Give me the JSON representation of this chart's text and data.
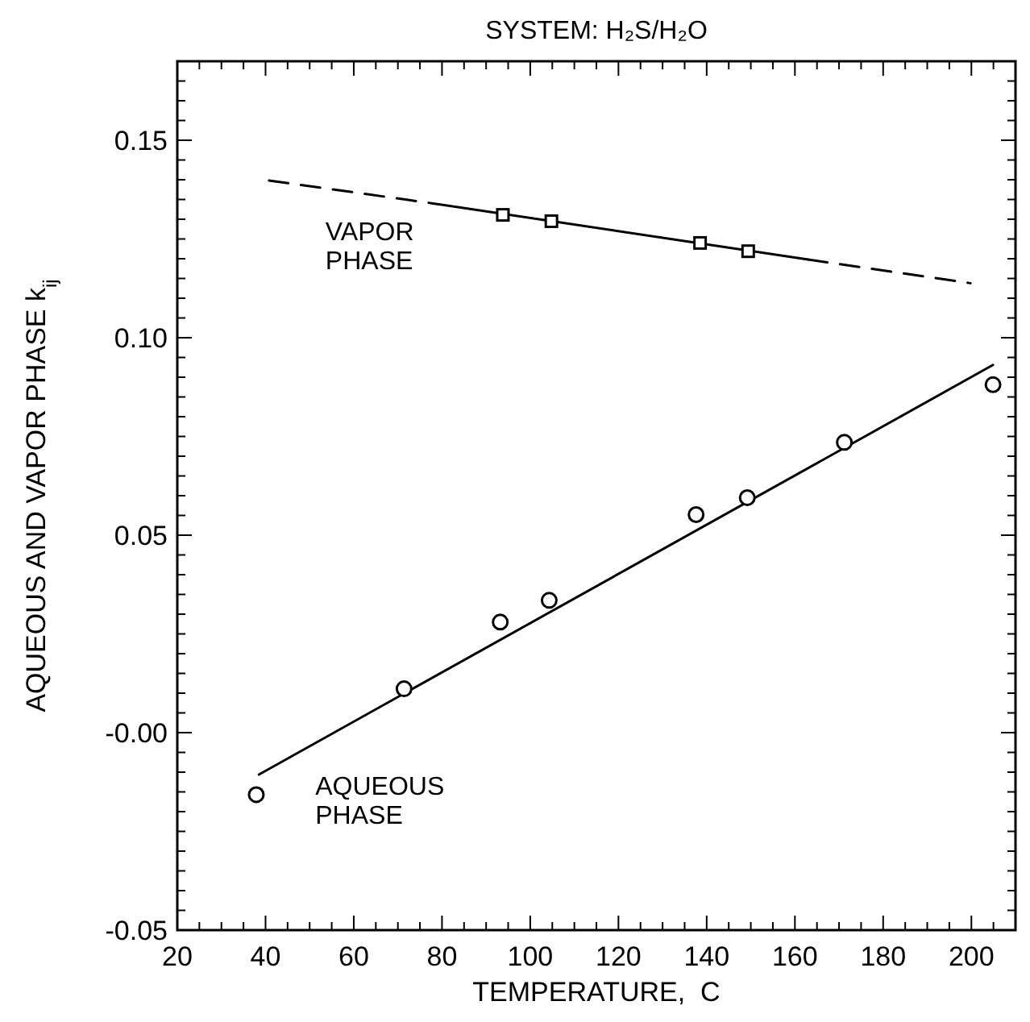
{
  "chart_data": {
    "type": "scatter",
    "title": "SYSTEM: H₂S/H₂O",
    "xlabel": "TEMPERATURE,  C",
    "ylabel": "AQUEOUS AND VAPOR PHASE k$_{ij}$",
    "xlim": [
      20,
      210
    ],
    "ylim": [
      -0.05,
      0.17
    ],
    "xticks": [
      20,
      {
        "value": 25,
        "label": null
      },
      {
        "value": 30,
        "label": null
      },
      {
        "value": 35,
        "label": null
      },
      40,
      {
        "value": 45,
        "label": null
      },
      {
        "value": 50,
        "label": null
      },
      {
        "value": 55,
        "label": null
      },
      60,
      {
        "value": 65,
        "label": null
      },
      {
        "value": 70,
        "label": null
      },
      {
        "value": 75,
        "label": null
      },
      80,
      {
        "value": 85,
        "label": null
      },
      {
        "value": 90,
        "label": null
      },
      {
        "value": 95,
        "label": null
      },
      100,
      {
        "value": 105,
        "label": null
      },
      {
        "value": 110,
        "label": null
      },
      {
        "value": 115,
        "label": null
      },
      120,
      {
        "value": 125,
        "label": null
      },
      {
        "value": 130,
        "label": null
      },
      {
        "value": 135,
        "label": null
      },
      140,
      {
        "value": 145,
        "label": null
      },
      {
        "value": 150,
        "label": null
      },
      {
        "value": 155,
        "label": null
      },
      160,
      {
        "value": 165,
        "label": null
      },
      {
        "value": 170,
        "label": null
      },
      {
        "value": 175,
        "label": null
      },
      180,
      {
        "value": 185,
        "label": null
      },
      {
        "value": 190,
        "label": null
      },
      {
        "value": 195,
        "label": null
      },
      200,
      {
        "value": 205,
        "label": null
      },
      {
        "value": 210,
        "label": null
      }
    ],
    "yticks": [
      {
        "value": -0.05,
        "label": "-0.05"
      },
      {
        "value": -0.045,
        "label": null
      },
      {
        "value": -0.04,
        "label": null
      },
      {
        "value": -0.035,
        "label": null
      },
      {
        "value": -0.03,
        "label": null
      },
      {
        "value": -0.025,
        "label": null
      },
      {
        "value": -0.02,
        "label": null
      },
      {
        "value": -0.015,
        "label": null
      },
      {
        "value": -0.01,
        "label": null
      },
      {
        "value": -0.005,
        "label": null
      },
      {
        "value": 0,
        "label": "-0.00"
      },
      {
        "value": 0.005,
        "label": null
      },
      {
        "value": 0.01,
        "label": null
      },
      {
        "value": 0.015,
        "label": null
      },
      {
        "value": 0.02,
        "label": null
      },
      {
        "value": 0.025,
        "label": null
      },
      {
        "value": 0.03,
        "label": null
      },
      {
        "value": 0.035,
        "label": null
      },
      {
        "value": 0.04,
        "label": null
      },
      {
        "value": 0.045,
        "label": null
      },
      0.05,
      {
        "value": 0.055,
        "label": null
      },
      {
        "value": 0.06,
        "label": null
      },
      {
        "value": 0.065,
        "label": null
      },
      {
        "value": 0.07,
        "label": null
      },
      {
        "value": 0.075,
        "label": null
      },
      {
        "value": 0.08,
        "label": null
      },
      {
        "value": 0.085,
        "label": null
      },
      {
        "value": 0.09,
        "label": null
      },
      {
        "value": 0.095,
        "label": null
      },
      {
        "value": 0.1,
        "label": "0.10"
      },
      {
        "value": 0.105,
        "label": null
      },
      {
        "value": 0.11,
        "label": null
      },
      {
        "value": 0.115,
        "label": null
      },
      {
        "value": 0.12,
        "label": null
      },
      {
        "value": 0.125,
        "label": null
      },
      {
        "value": 0.13,
        "label": null
      },
      {
        "value": 0.135,
        "label": null
      },
      {
        "value": 0.14,
        "label": null
      },
      {
        "value": 0.145,
        "label": null
      },
      0.15,
      {
        "value": 0.155,
        "label": null
      },
      {
        "value": 0.16,
        "label": null
      },
      {
        "value": 0.165,
        "label": null
      },
      {
        "value": 0.17,
        "label": null
      }
    ],
    "grid": false,
    "legend": false,
    "series": [
      {
        "type": "line",
        "name": "AQUEOUS PHASE",
        "color": "#000000",
        "line_style": "solid",
        "x": [
          38.5,
          204.9
        ],
        "values": [
          -0.0106,
          0.0931
        ]
      },
      {
        "color": "#000000",
        "marker": "circle",
        "x": [
          37.9,
          71.4,
          93.2,
          104.3,
          137.6,
          149.2,
          171.2,
          204.9
        ],
        "values": [
          -0.0157,
          0.0111,
          0.028,
          0.0335,
          0.0552,
          0.0595,
          0.0735,
          0.0881
        ]
      },
      {
        "type": "line",
        "color": "#000000",
        "line_style": "solid",
        "x": [
          78,
          163
        ],
        "values": [
          0.134,
          0.1198
        ]
      },
      {
        "type": "line",
        "name": "VAPOR PHASE",
        "color": "#000000",
        "line_style": "dashed",
        "x": [
          40.8,
          78,
          120,
          163,
          199.8
        ],
        "values": [
          0.1398,
          0.134,
          null,
          0.1198,
          0.1138
        ]
      },
      {
        "color": "#000000",
        "marker": "square",
        "x": [
          93.8,
          104.8,
          138.5,
          149.4
        ],
        "values": [
          0.1311,
          0.1295,
          0.124,
          0.1219
        ]
      }
    ]
  }
}
